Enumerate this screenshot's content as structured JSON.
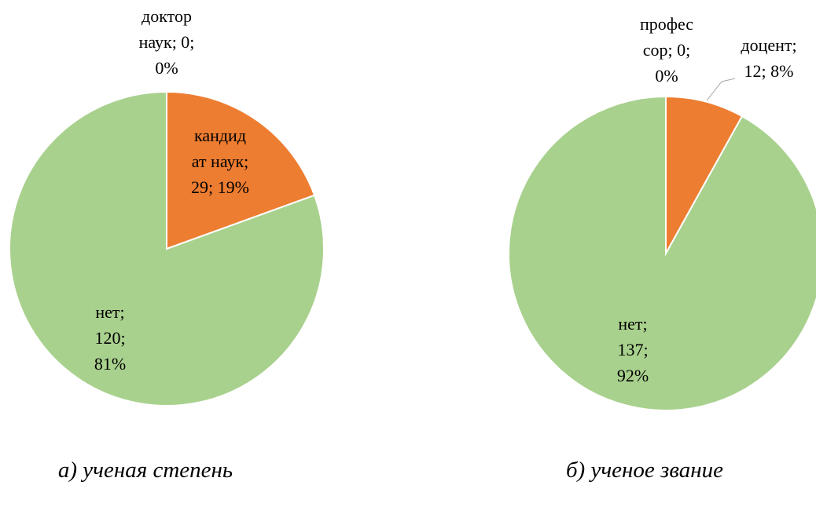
{
  "chart_data": [
    {
      "type": "pie",
      "caption": "а) ученая степень",
      "categories": [
        "доктор наук",
        "кандидат наук",
        "нет"
      ],
      "values": [
        0,
        29,
        120
      ],
      "value_labels": [
        "доктор\nнаук; 0;\n0%",
        "кандид\nат наук;\n29; 19%",
        "нет;\n120;\n81%"
      ],
      "colors": [
        "#4472c4",
        "#ed7d31",
        "#a9d18e"
      ]
    },
    {
      "type": "pie",
      "caption": "б) ученое звание",
      "categories": [
        "профессор",
        "доцент",
        "нет"
      ],
      "values": [
        0,
        12,
        137
      ],
      "value_labels": [
        "профес\nсор; 0;\n0%",
        "доцент;\n12; 8%",
        "нет;\n137;\n92%"
      ],
      "colors": [
        "#4472c4",
        "#ed7d31",
        "#a9d18e"
      ]
    }
  ]
}
